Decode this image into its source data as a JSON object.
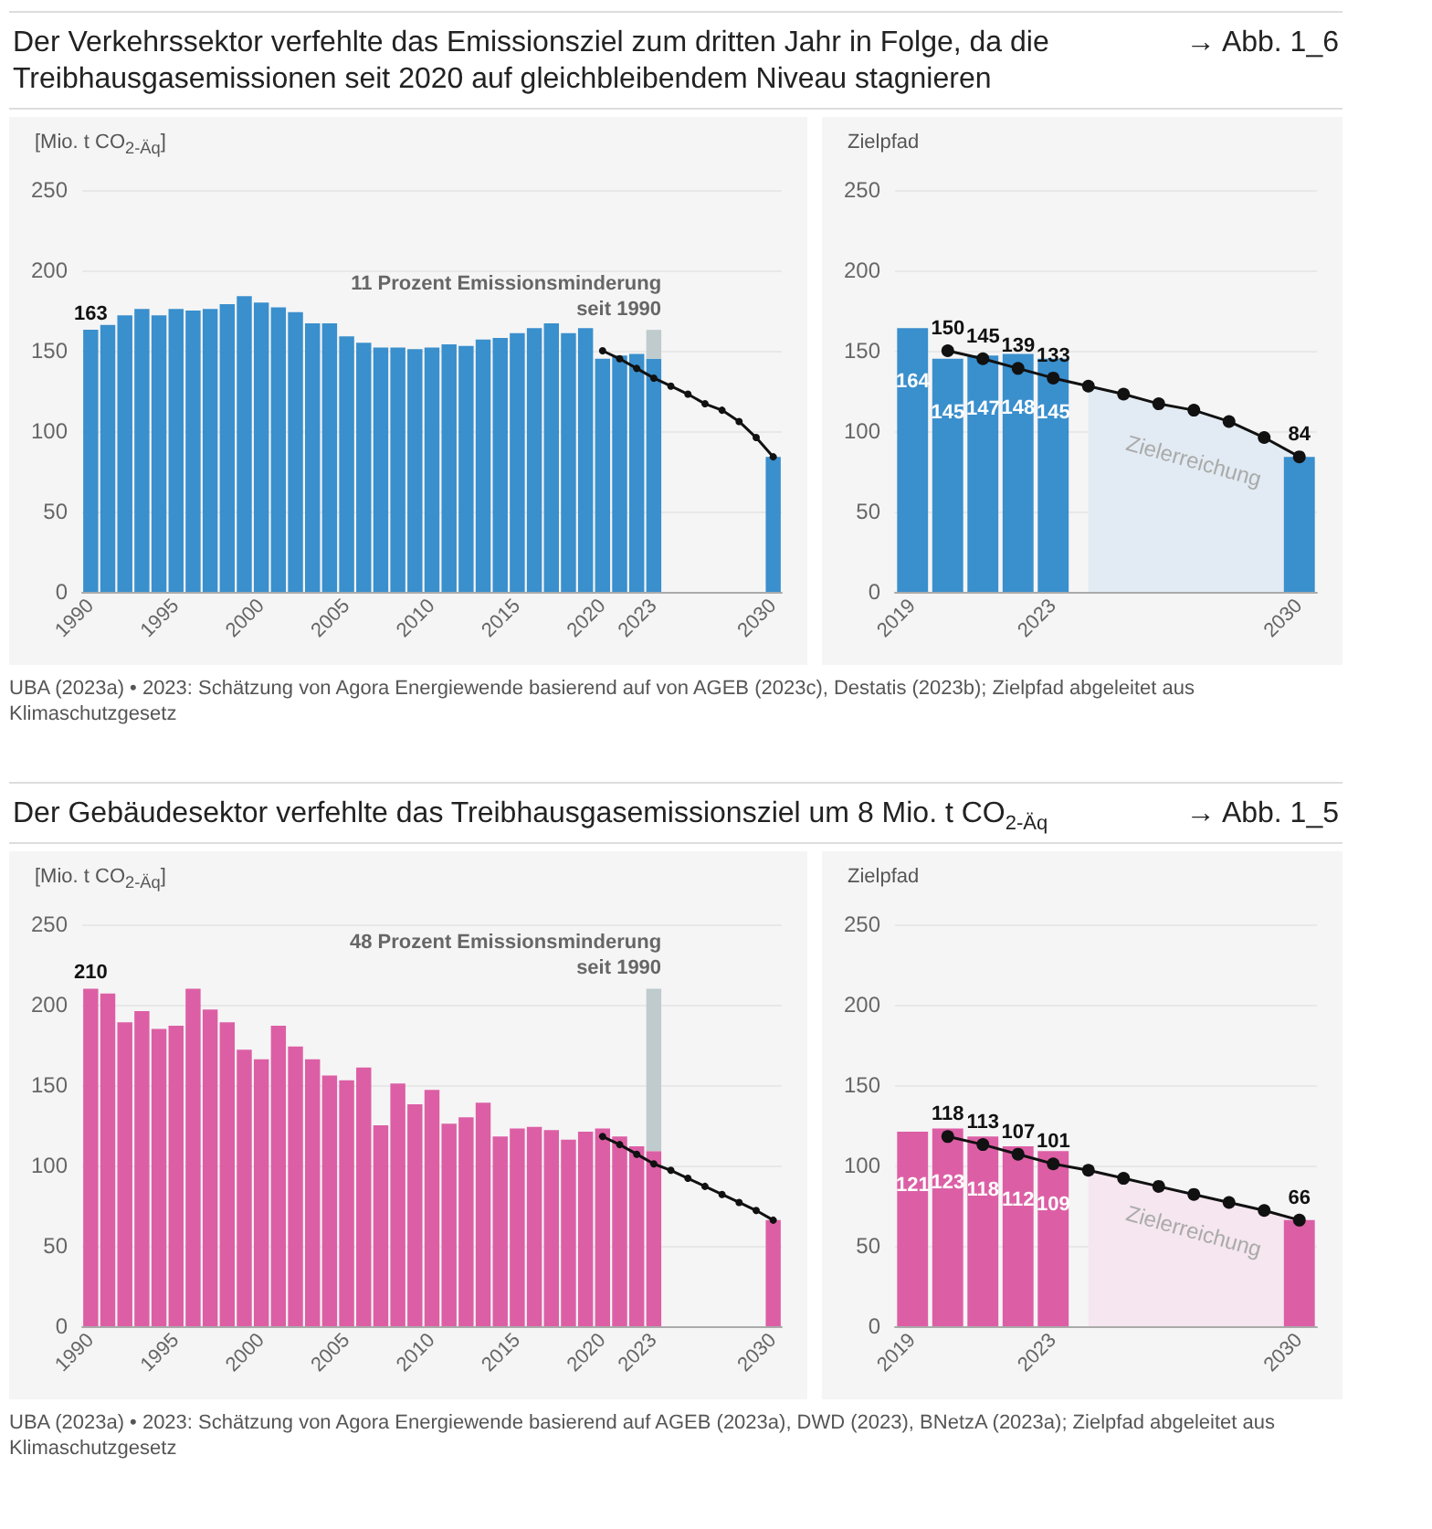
{
  "chart_data": [
    {
      "type": "bar",
      "title": "Der Verkehrssektor verfehlte das Emissionsziel zum dritten Jahr in Folge, da die Treibhausgasemissionen seit 2020 auf gleichbleibendem Niveau stagnieren",
      "ylabel": "[Mio. t CO$_{2-Äq}$]",
      "stacked": true,
      "categories": [
        "1990",
        null,
        null,
        null,
        null,
        "1995",
        null,
        null,
        null,
        null,
        "2000",
        null,
        null,
        null,
        null,
        "2005",
        null,
        null,
        null,
        null,
        "2010",
        null,
        null,
        null,
        null,
        "2015",
        null,
        null,
        null,
        null,
        "2020",
        null,
        null,
        "2023",
        null,
        null,
        null,
        null,
        null,
        null,
        "2030"
      ],
      "series": [
        {
          "color": "#3a8fcd",
          "values": [
            163,
            166,
            172,
            176,
            172,
            176,
            175,
            176,
            179,
            184,
            180,
            177,
            174,
            167,
            167,
            159,
            155,
            152,
            152,
            151,
            152,
            154,
            153,
            157,
            158,
            161,
            164,
            167,
            161,
            164,
            145,
            147,
            148,
            145,
            null,
            null,
            null,
            null,
            null,
            null,
            84
          ],
          "value_labels": [
            "163",
            null,
            null,
            null,
            null,
            null,
            null,
            null,
            null,
            null,
            null,
            null,
            null,
            null,
            null,
            null,
            null,
            null,
            null,
            null,
            null,
            null,
            null,
            null,
            null,
            null,
            null,
            null,
            null,
            null,
            null,
            null,
            null,
            null,
            null,
            null,
            null,
            null,
            null,
            null,
            null
          ]
        },
        {
          "color": "#bfcbcc",
          "values": [
            null,
            null,
            null,
            null,
            null,
            null,
            null,
            null,
            null,
            null,
            null,
            null,
            null,
            null,
            null,
            null,
            null,
            null,
            null,
            null,
            null,
            null,
            null,
            null,
            null,
            null,
            null,
            null,
            null,
            null,
            null,
            null,
            null,
            18,
            null,
            null,
            null,
            null,
            null,
            null,
            null
          ]
        },
        {
          "type": "line",
          "color": "#111111",
          "marker": "circle",
          "values": [
            null,
            null,
            null,
            null,
            null,
            null,
            null,
            null,
            null,
            null,
            null,
            null,
            null,
            null,
            null,
            null,
            null,
            null,
            null,
            null,
            null,
            null,
            null,
            null,
            null,
            null,
            null,
            null,
            null,
            null,
            150,
            145,
            139,
            133,
            128,
            123,
            117,
            113,
            106,
            96,
            84
          ]
        }
      ],
      "ylim": [
        0,
        250
      ],
      "yticks": [
        0,
        50,
        100,
        150,
        200,
        250
      ],
      "grid": "y",
      "annotations": [
        "→ Abb. 1_6",
        {
          "text": "11 Prozent Emissionsminderung\nseit 1990",
          "x": "2023",
          "y": 163
        },
        "UBA (2023a) • 2023: Schätzung von Agora Energiewende basierend auf von AGEB (2023c), Destatis (2023b); Zielpfad abgeleitet aus Klimaschutzgesetz"
      ]
    },
    {
      "type": "bar",
      "title": "Zielpfad",
      "categories": [
        "2019",
        null,
        null,
        null,
        "2023",
        null,
        null,
        null,
        null,
        null,
        null,
        "2030"
      ],
      "series": [
        {
          "type": "area",
          "color": "#e2ebf3",
          "values": [
            null,
            null,
            null,
            null,
            null,
            128,
            123,
            117,
            113,
            106,
            96,
            84
          ]
        },
        {
          "color": "#3a8fcd",
          "values": [
            164,
            145,
            147,
            148,
            145,
            null,
            null,
            null,
            null,
            null,
            null,
            84
          ],
          "value_labels": [
            "164",
            "145",
            "147",
            "148",
            "145",
            null,
            null,
            null,
            null,
            null,
            null,
            null
          ]
        },
        {
          "type": "line",
          "color": "#111111",
          "marker": "circle",
          "values": [
            null,
            150,
            145,
            139,
            133,
            128,
            123,
            117,
            113,
            106,
            96,
            84
          ],
          "value_labels": [
            null,
            "150",
            "145",
            "139",
            "133",
            null,
            null,
            null,
            null,
            null,
            null,
            "84"
          ]
        }
      ],
      "ylim": [
        0,
        250
      ],
      "yticks": [
        0,
        50,
        100,
        150,
        200,
        250
      ],
      "grid": "y",
      "annotations": [
        "Zielerreichung"
      ]
    },
    {
      "type": "bar",
      "title": "Der Gebäudesektor verfehlte das Treibhausgasemissionsziel um 8 Mio. t CO$_{2-Äq}$",
      "ylabel": "[Mio. t CO$_{2-Äq}$]",
      "stacked": true,
      "categories": [
        "1990",
        null,
        null,
        null,
        null,
        "1995",
        null,
        null,
        null,
        null,
        "2000",
        null,
        null,
        null,
        null,
        "2005",
        null,
        null,
        null,
        null,
        "2010",
        null,
        null,
        null,
        null,
        "2015",
        null,
        null,
        null,
        null,
        "2020",
        null,
        null,
        "2023",
        null,
        null,
        null,
        null,
        null,
        null,
        "2030"
      ],
      "series": [
        {
          "color": "#dc5fa5",
          "values": [
            210,
            207,
            189,
            196,
            185,
            187,
            210,
            197,
            189,
            172,
            166,
            187,
            174,
            166,
            156,
            153,
            161,
            125,
            151,
            138,
            147,
            126,
            130,
            139,
            118,
            123,
            124,
            122,
            116,
            121,
            123,
            118,
            112,
            109,
            null,
            null,
            null,
            null,
            null,
            null,
            66
          ],
          "value_labels": [
            "210",
            null,
            null,
            null,
            null,
            null,
            null,
            null,
            null,
            null,
            null,
            null,
            null,
            null,
            null,
            null,
            null,
            null,
            null,
            null,
            null,
            null,
            null,
            null,
            null,
            null,
            null,
            null,
            null,
            null,
            null,
            null,
            null,
            null,
            null,
            null,
            null,
            null,
            null,
            null,
            null
          ]
        },
        {
          "color": "#bfcbcc",
          "values": [
            null,
            null,
            null,
            null,
            null,
            null,
            null,
            null,
            null,
            null,
            null,
            null,
            null,
            null,
            null,
            null,
            null,
            null,
            null,
            null,
            null,
            null,
            null,
            null,
            null,
            null,
            null,
            null,
            null,
            null,
            null,
            null,
            null,
            101,
            null,
            null,
            null,
            null,
            null,
            null,
            null
          ]
        },
        {
          "type": "line",
          "color": "#111111",
          "marker": "circle",
          "values": [
            null,
            null,
            null,
            null,
            null,
            null,
            null,
            null,
            null,
            null,
            null,
            null,
            null,
            null,
            null,
            null,
            null,
            null,
            null,
            null,
            null,
            null,
            null,
            null,
            null,
            null,
            null,
            null,
            null,
            null,
            118,
            113,
            107,
            101,
            97,
            92,
            87,
            82,
            77,
            72,
            66
          ]
        }
      ],
      "ylim": [
        0,
        250
      ],
      "yticks": [
        0,
        50,
        100,
        150,
        200,
        250
      ],
      "grid": "y",
      "annotations": [
        "→ Abb. 1_5",
        {
          "text": "48 Prozent Emissionsminderung\nseit 1990",
          "x": "2023",
          "y": 210
        },
        "UBA (2023a) • 2023: Schätzung von Agora Energiewende basierend auf AGEB (2023a), DWD (2023), BNetzA (2023a); Zielpfad abgeleitet aus Klimaschutzgesetz"
      ]
    },
    {
      "type": "bar",
      "title": "Zielpfad",
      "categories": [
        "2019",
        null,
        null,
        null,
        "2023",
        null,
        null,
        null,
        null,
        null,
        null,
        "2030"
      ],
      "series": [
        {
          "type": "area",
          "color": "#f5e6ef",
          "values": [
            null,
            null,
            null,
            null,
            null,
            97,
            92,
            87,
            82,
            77,
            72,
            66
          ]
        },
        {
          "color": "#dc5fa5",
          "values": [
            121,
            123,
            118,
            112,
            109,
            null,
            null,
            null,
            null,
            null,
            null,
            66
          ],
          "value_labels": [
            "121",
            "123",
            "118",
            "112",
            "109",
            null,
            null,
            null,
            null,
            null,
            null,
            null
          ]
        },
        {
          "type": "line",
          "color": "#111111",
          "marker": "circle",
          "values": [
            null,
            118,
            113,
            107,
            101,
            97,
            92,
            87,
            82,
            77,
            72,
            66
          ],
          "value_labels": [
            null,
            "118",
            "113",
            "107",
            "101",
            null,
            null,
            null,
            null,
            null,
            null,
            "66"
          ]
        }
      ],
      "ylim": [
        0,
        250
      ],
      "yticks": [
        0,
        50,
        100,
        150,
        200,
        250
      ],
      "grid": "y",
      "annotations": [
        "Zielerreichung"
      ]
    }
  ]
}
